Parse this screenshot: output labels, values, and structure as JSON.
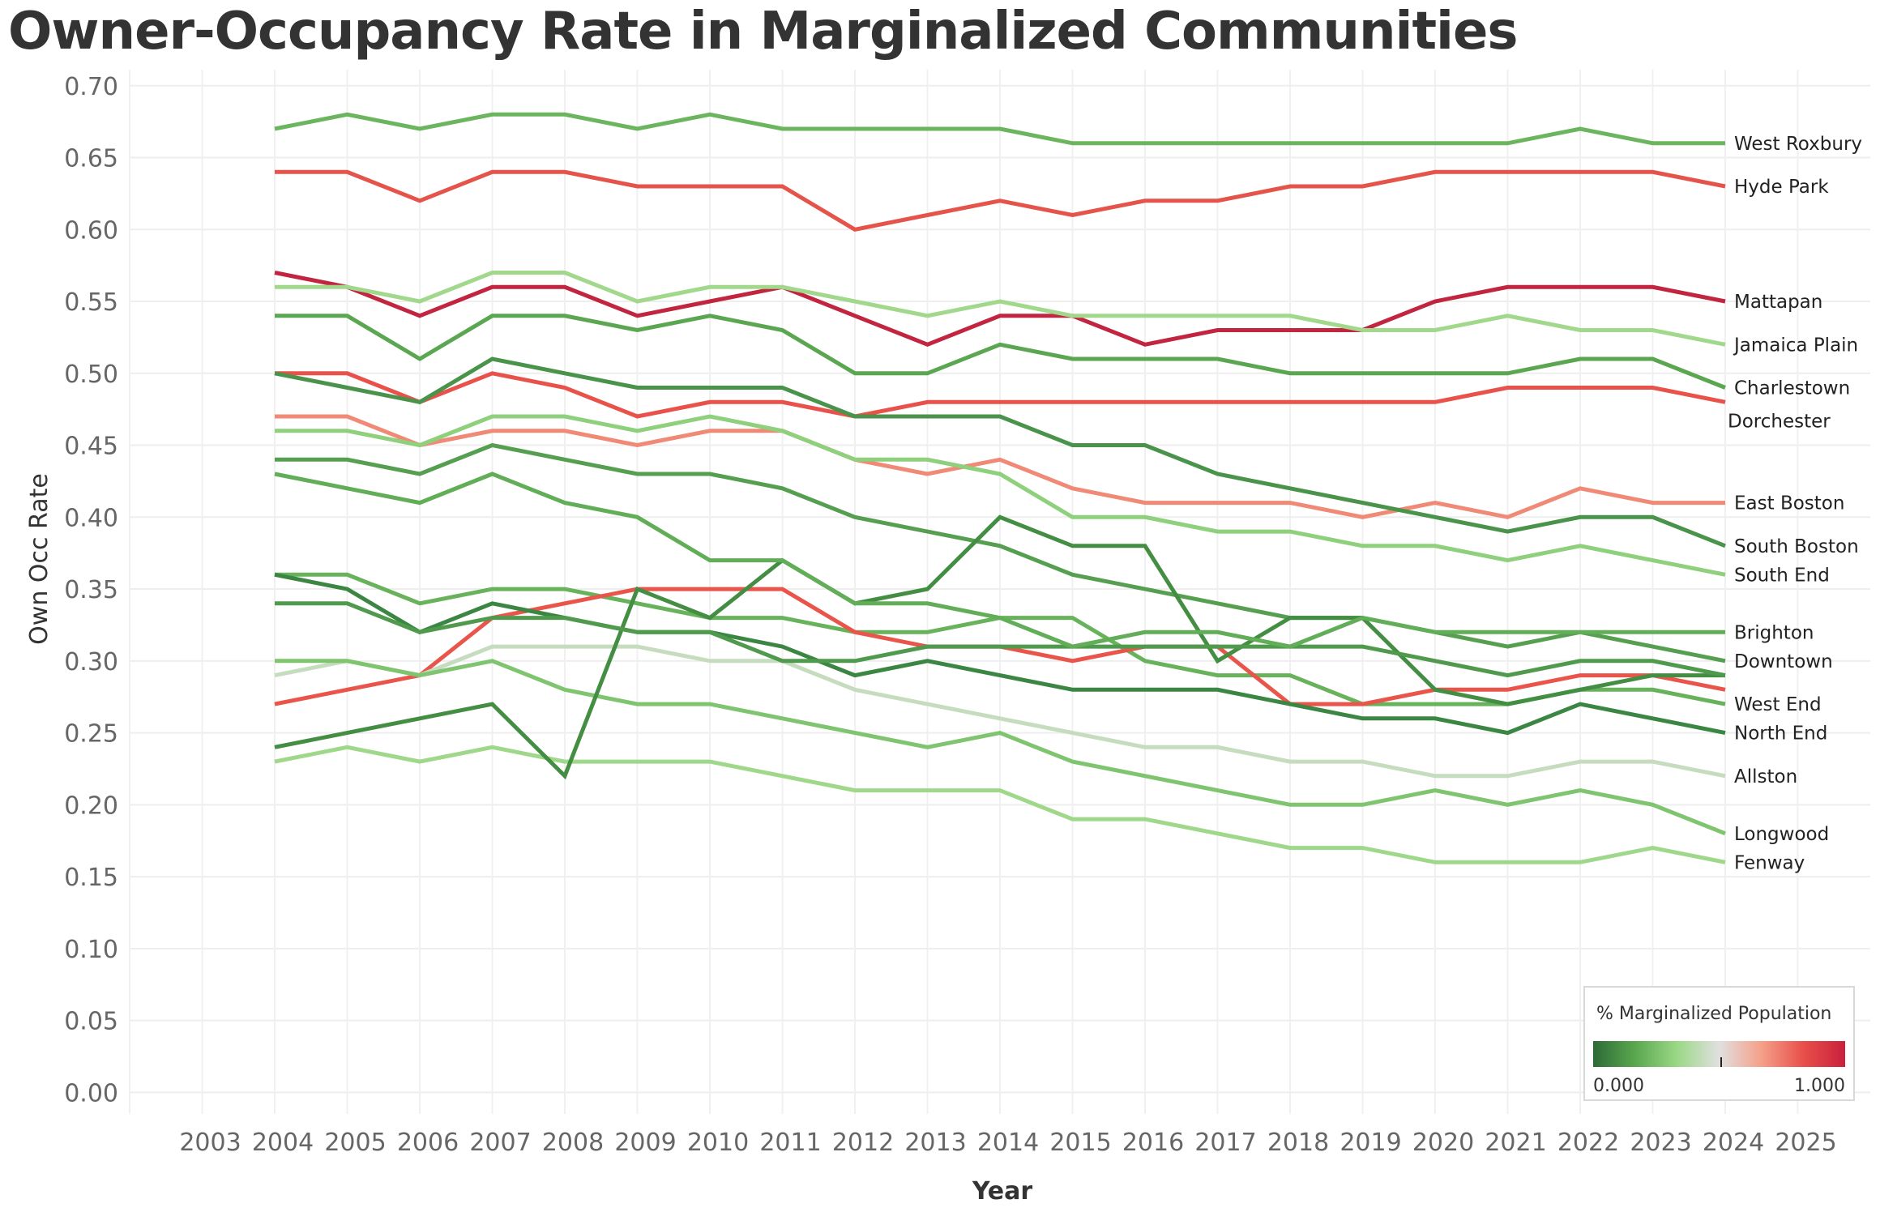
{
  "chart_data": {
    "type": "line",
    "title": "Owner-Occupancy Rate in Marginalized Communities",
    "xlabel": "Year",
    "ylabel": "Own Occ Rate",
    "xlim": [
      2002,
      2026
    ],
    "ylim": [
      -0.015,
      0.71
    ],
    "x_ticks": [
      2003,
      2004,
      2005,
      2006,
      2007,
      2008,
      2009,
      2010,
      2011,
      2012,
      2013,
      2014,
      2015,
      2016,
      2017,
      2018,
      2019,
      2020,
      2021,
      2022,
      2023,
      2024,
      2025
    ],
    "y_ticks": [
      "0.00",
      "0.05",
      "0.10",
      "0.15",
      "0.20",
      "0.25",
      "0.30",
      "0.35",
      "0.40",
      "0.45",
      "0.50",
      "0.55",
      "0.60",
      "0.65",
      "0.70"
    ],
    "grid": true,
    "x": [
      2004,
      2005,
      2006,
      2007,
      2008,
      2009,
      2010,
      2011,
      2012,
      2013,
      2014,
      2015,
      2016,
      2017,
      2018,
      2019,
      2020,
      2021,
      2022,
      2023,
      2024
    ],
    "legend": {
      "title": "% Marginalized Population",
      "min_label": "0.000",
      "max_label": "1.000",
      "placement": "bottom-right",
      "gradient": [
        "#2d6a37",
        "#5aa74e",
        "#9bd886",
        "#e0e0e0",
        "#f5a08a",
        "#e8504a",
        "#c8203d"
      ]
    },
    "series": [
      {
        "name": "West Roxbury",
        "color": "#6cb55f",
        "values": [
          0.67,
          0.68,
          0.67,
          0.68,
          0.68,
          0.67,
          0.68,
          0.67,
          0.67,
          0.67,
          0.67,
          0.66,
          0.66,
          0.66,
          0.66,
          0.66,
          0.66,
          0.66,
          0.67,
          0.66,
          0.66
        ]
      },
      {
        "name": "Hyde Park",
        "color": "#e5544a",
        "values": [
          0.64,
          0.64,
          0.62,
          0.64,
          0.64,
          0.63,
          0.63,
          0.63,
          0.6,
          0.61,
          0.62,
          0.61,
          0.62,
          0.62,
          0.63,
          0.63,
          0.64,
          0.64,
          0.64,
          0.64,
          0.63
        ]
      },
      {
        "name": "Mattapan",
        "color": "#c1253f",
        "values": [
          0.57,
          0.56,
          0.54,
          0.56,
          0.56,
          0.54,
          0.55,
          0.56,
          0.54,
          0.52,
          0.54,
          0.54,
          0.52,
          0.53,
          0.53,
          0.53,
          0.55,
          0.56,
          0.56,
          0.56,
          0.55
        ]
      },
      {
        "name": "Jamaica Plain",
        "color": "#a1d88c",
        "values": [
          0.56,
          0.56,
          0.55,
          0.57,
          0.57,
          0.55,
          0.56,
          0.56,
          0.55,
          0.54,
          0.55,
          0.54,
          0.54,
          0.54,
          0.54,
          0.53,
          0.53,
          0.54,
          0.53,
          0.53,
          0.52
        ]
      },
      {
        "name": "Charlestown",
        "color": "#5ba651",
        "values": [
          0.54,
          0.54,
          0.51,
          0.54,
          0.54,
          0.53,
          0.54,
          0.53,
          0.5,
          0.5,
          0.52,
          0.51,
          0.51,
          0.51,
          0.5,
          0.5,
          0.5,
          0.5,
          0.51,
          0.51,
          0.49
        ]
      },
      {
        "name": "Dorchester",
        "color": "#e8524a",
        "values": [
          0.5,
          0.5,
          0.48,
          0.5,
          0.49,
          0.47,
          0.48,
          0.48,
          0.47,
          0.48,
          0.48,
          0.48,
          0.48,
          0.48,
          0.48,
          0.48,
          0.48,
          0.49,
          0.49,
          0.49,
          0.48
        ]
      },
      {
        "name": "East Boston",
        "color": "#f08a76",
        "values": [
          0.47,
          0.47,
          0.45,
          0.46,
          0.46,
          0.45,
          0.46,
          0.46,
          0.44,
          0.43,
          0.44,
          0.42,
          0.41,
          0.41,
          0.41,
          0.4,
          0.41,
          0.4,
          0.42,
          0.41,
          0.41
        ]
      },
      {
        "name": "South Boston",
        "color": "#4a934a",
        "values": [
          0.5,
          0.49,
          0.48,
          0.51,
          0.5,
          0.49,
          0.49,
          0.49,
          0.47,
          0.47,
          0.47,
          0.45,
          0.45,
          0.43,
          0.42,
          0.41,
          0.4,
          0.39,
          0.4,
          0.4,
          0.38
        ]
      },
      {
        "name": "South End",
        "color": "#8ed07c",
        "values": [
          0.46,
          0.46,
          0.45,
          0.47,
          0.47,
          0.46,
          0.47,
          0.46,
          0.44,
          0.44,
          0.43,
          0.4,
          0.4,
          0.39,
          0.39,
          0.38,
          0.38,
          0.37,
          0.38,
          0.37,
          0.36
        ]
      },
      {
        "name": "Brighton",
        "color": "#68b25b",
        "values": [
          0.36,
          0.36,
          0.34,
          0.35,
          0.35,
          0.34,
          0.33,
          0.33,
          0.32,
          0.32,
          0.33,
          0.33,
          0.3,
          0.29,
          0.29,
          0.27,
          0.27,
          0.27,
          0.28,
          0.28,
          0.27
        ]
      },
      {
        "name": "Downtown",
        "color": "#569f50",
        "values": [
          0.44,
          0.44,
          0.43,
          0.45,
          0.44,
          0.43,
          0.43,
          0.42,
          0.4,
          0.39,
          0.38,
          0.36,
          0.35,
          0.34,
          0.33,
          0.33,
          0.32,
          0.31,
          0.32,
          0.31,
          0.3
        ]
      },
      {
        "name": "West End",
        "color": "#e9554a",
        "values": [
          0.27,
          0.28,
          0.29,
          0.33,
          0.34,
          0.35,
          0.35,
          0.35,
          0.32,
          0.31,
          0.31,
          0.3,
          0.31,
          0.31,
          0.27,
          0.27,
          0.28,
          0.28,
          0.29,
          0.29,
          0.28
        ]
      },
      {
        "name": "North End",
        "color": "#3a8642",
        "values": [
          0.36,
          0.35,
          0.32,
          0.34,
          0.33,
          0.32,
          0.32,
          0.31,
          0.29,
          0.3,
          0.29,
          0.28,
          0.28,
          0.28,
          0.27,
          0.26,
          0.26,
          0.25,
          0.27,
          0.26,
          0.25
        ]
      },
      {
        "name": "Allston",
        "color": "#c6dcbf",
        "values": [
          0.29,
          0.3,
          0.29,
          0.31,
          0.31,
          0.31,
          0.3,
          0.3,
          0.28,
          0.27,
          0.26,
          0.25,
          0.24,
          0.24,
          0.23,
          0.23,
          0.22,
          0.22,
          0.23,
          0.23,
          0.22
        ]
      },
      {
        "name": "Longwood",
        "color": "#7fc46f",
        "values": [
          0.3,
          0.3,
          0.29,
          0.3,
          0.28,
          0.27,
          0.27,
          0.26,
          0.25,
          0.24,
          0.25,
          0.23,
          0.22,
          0.21,
          0.2,
          0.2,
          0.21,
          0.2,
          0.21,
          0.2,
          0.18
        ]
      },
      {
        "name": "Fenway",
        "color": "#9fd88a",
        "values": [
          0.23,
          0.24,
          0.23,
          0.24,
          0.23,
          0.23,
          0.23,
          0.22,
          0.21,
          0.21,
          0.21,
          0.19,
          0.19,
          0.18,
          0.17,
          0.17,
          0.16,
          0.16,
          0.16,
          0.17,
          0.16
        ]
      },
      {
        "name": "",
        "color": "#448e44",
        "values": [
          0.24,
          0.25,
          0.26,
          0.27,
          0.22,
          0.35,
          0.33,
          0.37,
          0.34,
          0.35,
          0.4,
          0.38,
          0.38,
          0.3,
          0.33,
          0.33,
          0.28,
          0.27,
          0.28,
          0.29,
          0.29
        ]
      },
      {
        "name": "",
        "color": "#4f9a4c",
        "values": [
          0.34,
          0.34,
          0.32,
          0.33,
          0.33,
          0.32,
          0.32,
          0.3,
          0.3,
          0.31,
          0.31,
          0.31,
          0.31,
          0.31,
          0.31,
          0.31,
          0.3,
          0.29,
          0.3,
          0.3,
          0.29
        ]
      },
      {
        "name": "",
        "color": "#62ad57",
        "values": [
          0.43,
          0.42,
          0.41,
          0.43,
          0.41,
          0.4,
          0.37,
          0.37,
          0.34,
          0.34,
          0.33,
          0.31,
          0.32,
          0.32,
          0.31,
          0.33,
          0.32,
          0.32,
          0.32,
          0.32,
          0.32
        ]
      }
    ],
    "end_labels": [
      {
        "series": "West Roxbury",
        "text": "West Roxbury",
        "value": 0.66
      },
      {
        "series": "Hyde Park",
        "text": "Hyde Park",
        "value": 0.63
      },
      {
        "series": "Mattapan",
        "text": "Mattapan",
        "value": 0.55
      },
      {
        "series": "Jamaica Plain",
        "text": "Jamaica Plain",
        "value": 0.52
      },
      {
        "series": "Charlestown",
        "text": "Charlestown",
        "value": 0.49
      },
      {
        "series": "Dorchester",
        "text": "Dorchester",
        "value": 0.467
      },
      {
        "series": "East Boston",
        "text": "East Boston",
        "value": 0.41
      },
      {
        "series": "South Boston",
        "text": "South Boston",
        "value": 0.38
      },
      {
        "series": "South End",
        "text": "South End",
        "value": 0.36
      },
      {
        "series": "Brighton",
        "text": "Brighton",
        "value": 0.32
      },
      {
        "series": "Downtown",
        "text": "Downtown",
        "value": 0.3
      },
      {
        "series": "West End",
        "text": "West End",
        "value": 0.27
      },
      {
        "series": "North End",
        "text": "North End",
        "value": 0.25
      },
      {
        "series": "Allston",
        "text": "Allston",
        "value": 0.22
      },
      {
        "series": "Longwood",
        "text": "Longwood",
        "value": 0.18
      },
      {
        "series": "Fenway",
        "text": "Fenway",
        "value": 0.16
      }
    ]
  }
}
